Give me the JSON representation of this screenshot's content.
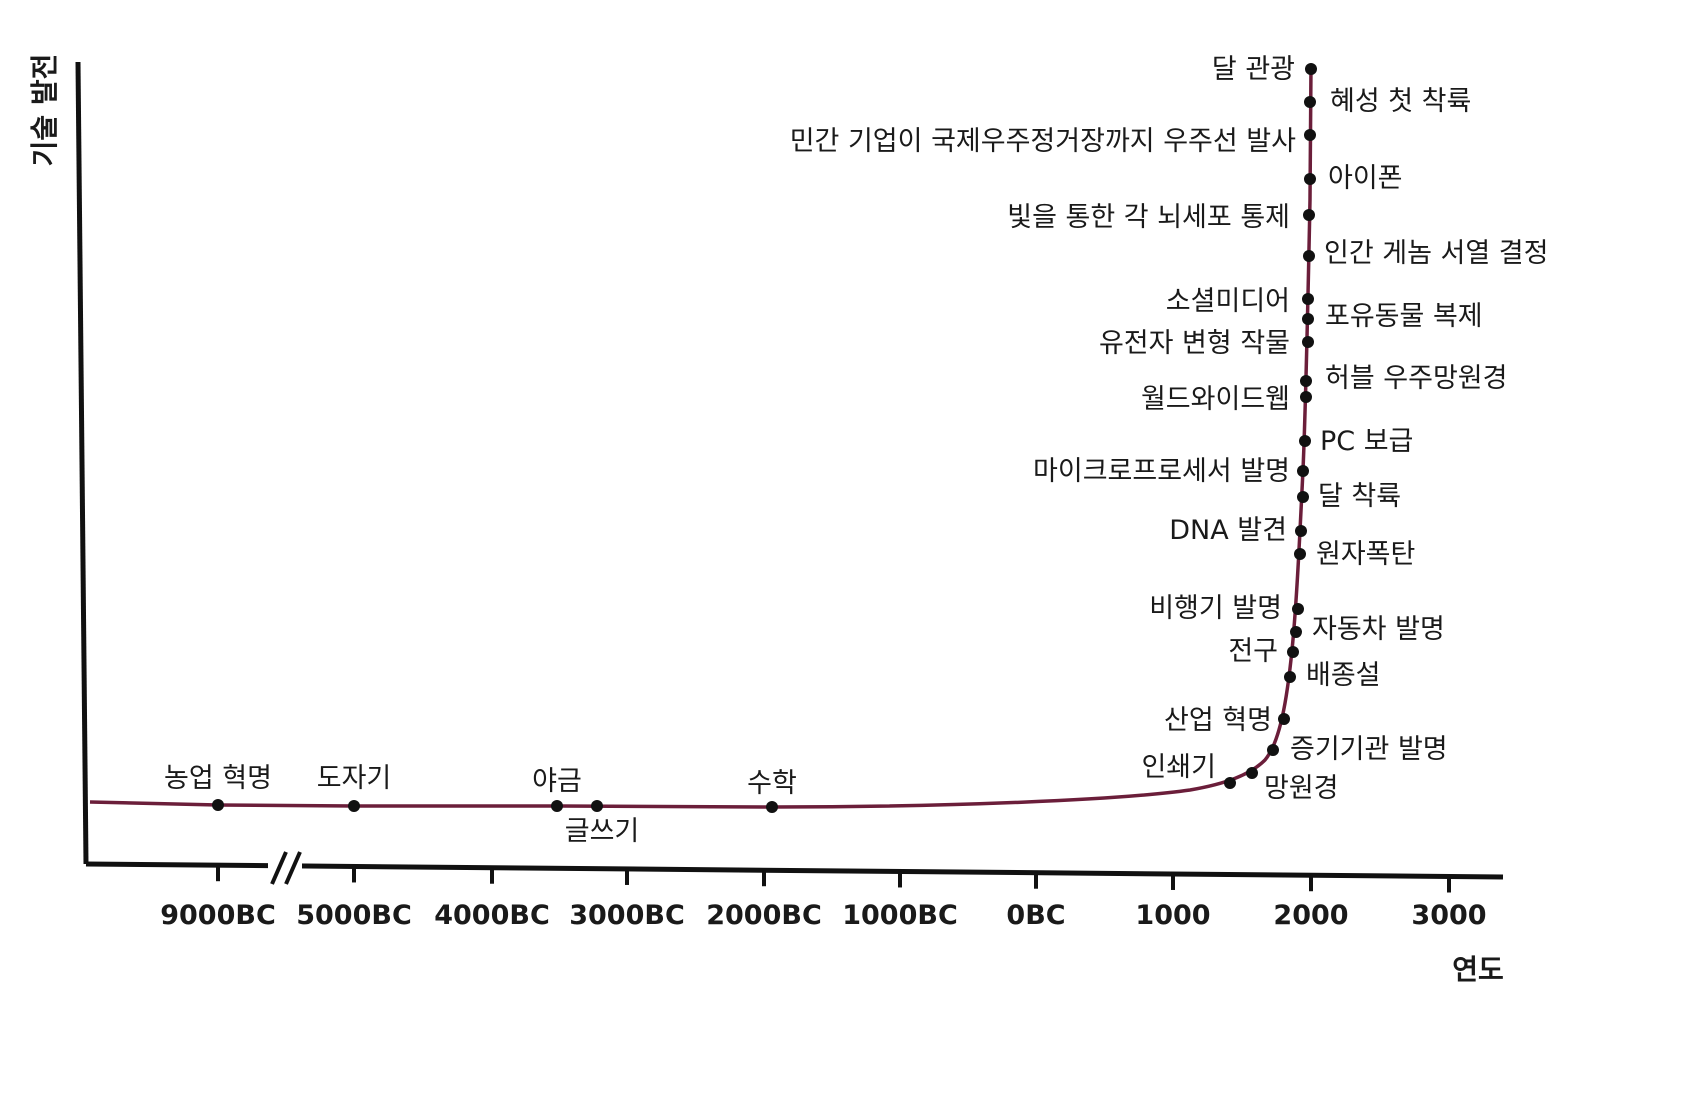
{
  "chart_data": {
    "type": "line",
    "title": "",
    "xlabel": "연도",
    "ylabel": "기술 발전",
    "x_ticks": [
      "9000BC",
      "5000BC",
      "4000BC",
      "3000BC",
      "2000BC",
      "1000BC",
      "0BC",
      "1000",
      "2000",
      "3000"
    ],
    "axis_break": "between 9000BC and 5000BC",
    "grid": false,
    "legend": "none",
    "line_color": "#6b1e3a",
    "series": [
      {
        "points": [
          {
            "year": -9000,
            "label": "농업 혁명"
          },
          {
            "year": -5000,
            "label": "도자기"
          },
          {
            "year": -3500,
            "label": "야금"
          },
          {
            "year": -3200,
            "label": "글쓰기"
          },
          {
            "year": -2000,
            "label": "수학"
          },
          {
            "year": 1440,
            "label": "인쇄기"
          },
          {
            "year": 1608,
            "label": "망원경"
          },
          {
            "year": 1712,
            "label": "증기기관 발명"
          },
          {
            "year": 1760,
            "label": "산업 혁명"
          },
          {
            "year": 1859,
            "label": "배종설"
          },
          {
            "year": 1879,
            "label": "전구"
          },
          {
            "year": 1886,
            "label": "자동차 발명"
          },
          {
            "year": 1903,
            "label": "비행기 발명"
          },
          {
            "year": 1945,
            "label": "원자폭탄"
          },
          {
            "year": 1953,
            "label": "DNA 발견"
          },
          {
            "year": 1969,
            "label": "달 착륙"
          },
          {
            "year": 1971,
            "label": "마이크로프로세서 발명"
          },
          {
            "year": 1981,
            "label": "PC 보급"
          },
          {
            "year": 1990,
            "label": "허블 우주망원경"
          },
          {
            "year": 1991,
            "label": "월드와이드웹"
          },
          {
            "year": 1994,
            "label": "유전자 변형 작물"
          },
          {
            "year": 1996,
            "label": "포유동물 복제"
          },
          {
            "year": 1997,
            "label": "소셜미디어"
          },
          {
            "year": 2003,
            "label": "인간 게놈 서열 결정"
          },
          {
            "year": 2005,
            "label": "빛을 통한 각 뇌세포 통제"
          },
          {
            "year": 2007,
            "label": "아이폰"
          },
          {
            "year": 2012,
            "label": "민간 기업이 국제우주정거장까지 우주선 발사"
          },
          {
            "year": 2014,
            "label": "혜성 첫 착륙"
          },
          {
            "year": 2020,
            "label": "달 관광"
          }
        ]
      }
    ]
  }
}
